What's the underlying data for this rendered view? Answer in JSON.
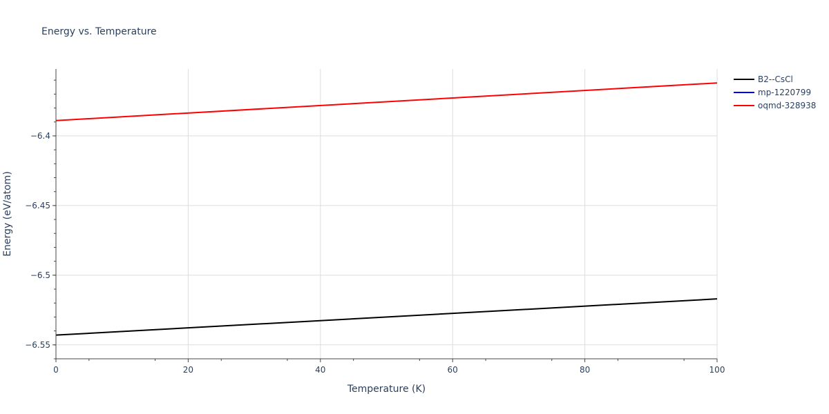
{
  "chart_data": {
    "type": "line",
    "title": "Energy vs. Temperature",
    "xlabel": "Temperature (K)",
    "ylabel": "Energy (eV/atom)",
    "xlim": [
      0,
      100
    ],
    "ylim": [
      -6.56,
      -6.352
    ],
    "xticks": [
      0,
      20,
      40,
      60,
      80,
      100
    ],
    "xtick_labels": [
      "0",
      "20",
      "40",
      "60",
      "80",
      "100"
    ],
    "yticks": [
      -6.4,
      -6.45,
      -6.5,
      -6.55
    ],
    "ytick_labels": [
      "−6.4",
      "−6.45",
      "−6.5",
      "−6.55"
    ],
    "grid": true,
    "legend_position": "top-right",
    "series": [
      {
        "name": "B2--CsCl",
        "color": "#000000",
        "x": [
          0,
          100
        ],
        "y": [
          -6.543,
          -6.517
        ]
      },
      {
        "name": "mp-1220799",
        "color": "#0000ff",
        "x": [],
        "y": []
      },
      {
        "name": "oqmd-328938",
        "color": "#ff0000",
        "x": [
          0,
          100
        ],
        "y": [
          -6.389,
          -6.362
        ]
      }
    ]
  }
}
